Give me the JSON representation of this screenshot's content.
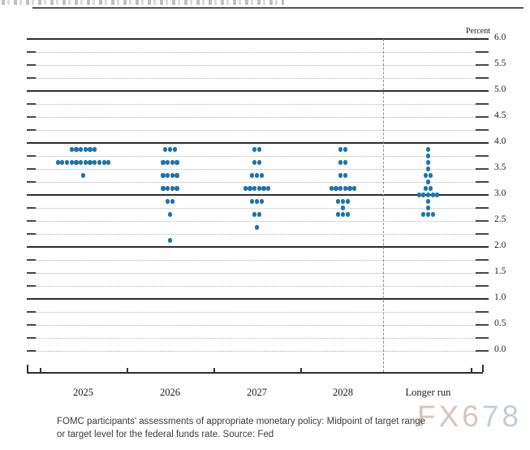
{
  "watermark": {
    "tan": "FX6",
    "blue": "78"
  },
  "caption": {
    "line1": "FOMC participants' assessments of appropriate monetary policy: Midpoint of target range",
    "line2": "or target level for the federal funds rate. Source: Fed"
  },
  "chart_data": {
    "type": "scatter",
    "subtype": "fomc-dot-plot",
    "title": "",
    "percent_label": "Percent",
    "ylabel": "Percent",
    "ylim": [
      0.0,
      6.0
    ],
    "grid_step": 0.25,
    "solid_gridlines_at": [
      6.0,
      5.0,
      4.0,
      3.0,
      2.0,
      1.0
    ],
    "y_tick_labels": [
      "6.0",
      "5.5",
      "5.0",
      "4.5",
      "4.0",
      "3.5",
      "3.0",
      "2.5",
      "2.0",
      "1.5",
      "1.0",
      "0.5",
      "0.0"
    ],
    "categories": [
      "2025",
      "2026",
      "2027",
      "2028",
      "Longer run"
    ],
    "separator_after_category": "2028",
    "dot_color": "#1a74ad",
    "series": [
      {
        "category": "2025",
        "dots": [
          {
            "rate": 3.875,
            "count": 6
          },
          {
            "rate": 3.625,
            "count": 12
          },
          {
            "rate": 3.375,
            "count": 1
          }
        ]
      },
      {
        "category": "2026",
        "dots": [
          {
            "rate": 3.875,
            "count": 3
          },
          {
            "rate": 3.625,
            "count": 4
          },
          {
            "rate": 3.375,
            "count": 4
          },
          {
            "rate": 3.125,
            "count": 4
          },
          {
            "rate": 2.875,
            "count": 2
          },
          {
            "rate": 2.625,
            "count": 1
          },
          {
            "rate": 2.125,
            "count": 1
          }
        ]
      },
      {
        "category": "2027",
        "dots": [
          {
            "rate": 3.875,
            "count": 2
          },
          {
            "rate": 3.625,
            "count": 2
          },
          {
            "rate": 3.375,
            "count": 3
          },
          {
            "rate": 3.125,
            "count": 6
          },
          {
            "rate": 2.875,
            "count": 3
          },
          {
            "rate": 2.625,
            "count": 2
          },
          {
            "rate": 2.375,
            "count": 1
          }
        ]
      },
      {
        "category": "2028",
        "dots": [
          {
            "rate": 3.875,
            "count": 2
          },
          {
            "rate": 3.625,
            "count": 2
          },
          {
            "rate": 3.375,
            "count": 2
          },
          {
            "rate": 3.125,
            "count": 6
          },
          {
            "rate": 2.875,
            "count": 3
          },
          {
            "rate": 2.75,
            "count": 1
          },
          {
            "rate": 2.625,
            "count": 3
          }
        ]
      },
      {
        "category": "Longer run",
        "dots": [
          {
            "rate": 3.875,
            "count": 1
          },
          {
            "rate": 3.75,
            "count": 1
          },
          {
            "rate": 3.625,
            "count": 1
          },
          {
            "rate": 3.5,
            "count": 1
          },
          {
            "rate": 3.375,
            "count": 2
          },
          {
            "rate": 3.25,
            "count": 1
          },
          {
            "rate": 3.125,
            "count": 2
          },
          {
            "rate": 3.0,
            "count": 5
          },
          {
            "rate": 2.875,
            "count": 1
          },
          {
            "rate": 2.75,
            "count": 1
          },
          {
            "rate": 2.625,
            "count": 3
          }
        ]
      }
    ]
  }
}
